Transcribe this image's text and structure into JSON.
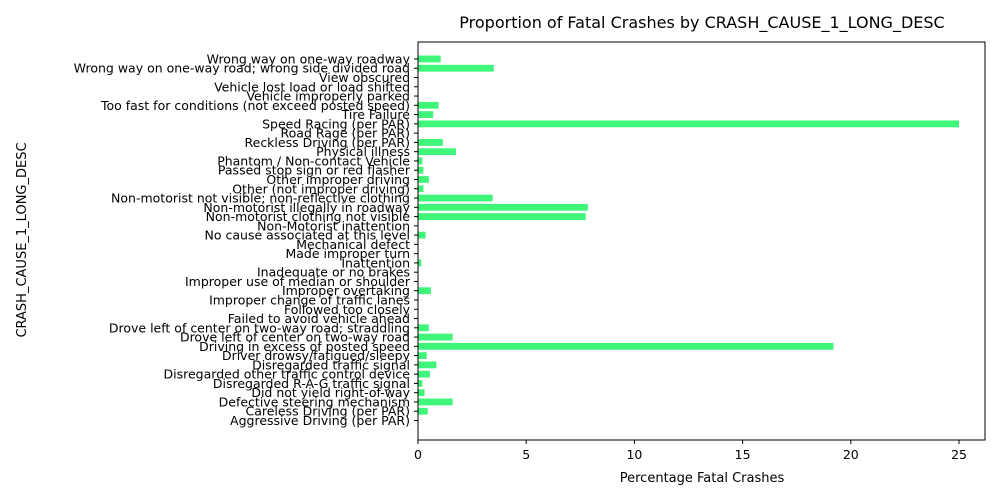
{
  "chart_data": {
    "type": "bar",
    "orientation": "horizontal",
    "title": "Proportion of Fatal Crashes by CRASH_CAUSE_1_LONG_DESC",
    "xlabel": "Percentage Fatal Crashes",
    "ylabel": "CRASH_CAUSE_1_LONG_DESC",
    "xlim": [
      0,
      26.2
    ],
    "xticks": [
      0,
      5,
      10,
      15,
      20,
      25
    ],
    "grid": false,
    "bar_color": "#3ff57a",
    "categories": [
      "Aggressive Driving (per PAR)",
      "Careless Driving (per PAR)",
      "Defective steering mechanism",
      "Did not yield right-of-way",
      "Disregarded R-A-G traffic signal",
      "Disregarded other traffic control device",
      "Disregarded traffic signal",
      "Driver drowsy/fatigued/sleepy",
      "Driving in excess of posted speed",
      "Drove left of center on two-way road",
      "Drove left of center on two-way road; straddling",
      "Failed to avoid vehicle ahead",
      "Followed too closely",
      "Improper change of traffic lanes",
      "Improper overtaking",
      "Improper use of median or shoulder",
      "Inadequate or no brakes",
      "Inattention",
      "Made improper turn",
      "Mechanical defect",
      "No cause associated at this level",
      "Non-Motorist inattention",
      "Non-motorist clothing not visible",
      "Non-motorist illegally in roadway",
      "Non-motorist not visible; non-reflective clothing",
      "Other (not improper driving)",
      "Other improper driving",
      "Passed stop sign or red flasher",
      "Phantom / Non-contact Vehicle",
      "Physical illness",
      "Reckless Driving (per PAR)",
      "Road Rage (per PAR)",
      "Speed Racing (per PAR)",
      "Tire Failure",
      "Too fast for conditions (not exceed posted speed)",
      "Vehicle improperly parked",
      "Vehicle lost load or load shifted",
      "View obscured",
      "Wrong way on one-way road; wrong side divided road",
      "Wrong way on one-way roadway"
    ],
    "values": [
      0.0,
      0.45,
      1.6,
      0.3,
      0.2,
      0.55,
      0.85,
      0.4,
      19.2,
      1.6,
      0.5,
      0.02,
      0.02,
      0.02,
      0.6,
      0.02,
      0.02,
      0.15,
      0.02,
      0.02,
      0.35,
      0.02,
      7.75,
      7.85,
      3.45,
      0.25,
      0.5,
      0.25,
      0.2,
      1.75,
      1.15,
      0.02,
      25.0,
      0.7,
      0.95,
      0.02,
      0.02,
      0.02,
      3.5,
      1.05
    ]
  }
}
